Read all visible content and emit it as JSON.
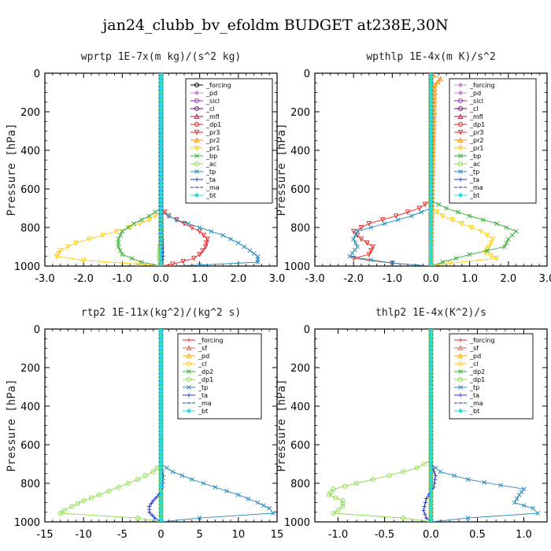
{
  "title": "jan24_clubb_bv_efoldm  BUDGET at238E,30N",
  "chart_data": [
    {
      "type": "line",
      "title": "wprtp  1E-7x(m kg)/(s^2 kg)",
      "ylabel": "Pressure [hPa]",
      "xlim": [
        -3,
        3
      ],
      "ylim": [
        1000,
        0
      ],
      "xticks": [
        -3,
        -2,
        -1,
        0,
        1,
        2,
        3
      ],
      "xticklabels": [
        "-3.0",
        "-2.0",
        "-1.0",
        "0.0",
        "1.0",
        "2.0",
        "3.0"
      ],
      "yticks": [
        0,
        200,
        400,
        600,
        800,
        1000
      ],
      "yticklabels": [
        "0",
        "200",
        "400",
        "600",
        "800",
        "1000"
      ],
      "legend_position": "top-right",
      "legend": [
        "_forcing",
        "_pd",
        "_sicl",
        "_cl",
        "_mfl",
        "_dp1",
        "_pr3",
        "_pr2",
        "_pr1",
        "_bp",
        "_ac",
        "_tp",
        "_ta",
        "_ma",
        "_bt"
      ],
      "series": [
        {
          "name": "_forcing",
          "color": "#000000",
          "marker": "circle",
          "x": [
            0,
            0,
            0,
            0,
            0,
            0
          ],
          "y": [
            0,
            200,
            400,
            600,
            800,
            1000
          ]
        },
        {
          "name": "_pd",
          "color": "#cc88cc",
          "marker": "diamond",
          "x": [
            0,
            0
          ],
          "y": [
            0,
            1000
          ]
        },
        {
          "name": "_sicl",
          "color": "#8833aa",
          "marker": "circle",
          "x": [
            0,
            0,
            0.02,
            0
          ],
          "y": [
            0,
            700,
            900,
            1000
          ]
        },
        {
          "name": "_cl",
          "color": "#661166",
          "marker": "circle",
          "x": [
            0,
            0
          ],
          "y": [
            0,
            1000
          ]
        },
        {
          "name": "_mfl",
          "color": "#aa1144",
          "marker": "triangle",
          "x": [
            0,
            0
          ],
          "y": [
            0,
            1000
          ]
        },
        {
          "name": "_dp1",
          "color": "#dd2222",
          "marker": "circle",
          "x": [
            0,
            0
          ],
          "y": [
            0,
            1000
          ]
        },
        {
          "name": "_pr3",
          "color": "#ee2222",
          "marker": "triangle-down",
          "x": [
            0,
            0,
            0.2,
            0.6,
            1.0,
            1.2,
            1.15,
            1.0,
            0.85,
            0.3,
            0
          ],
          "y": [
            0,
            700,
            740,
            780,
            820,
            860,
            900,
            940,
            960,
            990,
            1000
          ]
        },
        {
          "name": "_pr2",
          "color": "#ff8800",
          "marker": "triangle",
          "x": [
            0,
            0
          ],
          "y": [
            0,
            1000
          ]
        },
        {
          "name": "_pr1",
          "color": "#ffcc00",
          "marker": "triangle-down",
          "x": [
            0,
            0,
            -0.3,
            -0.8,
            -1.5,
            -2.2,
            -2.6,
            -2.7,
            -2.0,
            -0.6,
            0
          ],
          "y": [
            0,
            720,
            760,
            800,
            840,
            880,
            920,
            950,
            970,
            990,
            1000
          ]
        },
        {
          "name": "_bp",
          "color": "#33aa33",
          "marker": "x",
          "x": [
            0,
            0,
            -0.3,
            -0.7,
            -1.0,
            -1.1,
            -1.1,
            -1.0,
            -0.5,
            0
          ],
          "y": [
            0,
            700,
            740,
            780,
            820,
            860,
            900,
            940,
            980,
            1000
          ]
        },
        {
          "name": "_ac",
          "color": "#88dd44",
          "marker": "circle",
          "x": [
            0,
            0,
            -0.05,
            0
          ],
          "y": [
            0,
            850,
            950,
            1000
          ]
        },
        {
          "name": "_tp",
          "color": "#2288bb",
          "marker": "x",
          "x": [
            0,
            0,
            0.4,
            1.0,
            1.6,
            2.0,
            2.3,
            2.5,
            2.5,
            1.0,
            0
          ],
          "y": [
            0,
            720,
            760,
            800,
            840,
            880,
            920,
            950,
            980,
            995,
            1000
          ]
        },
        {
          "name": "_ta",
          "color": "#2233cc",
          "marker": "plus",
          "x": [
            0,
            0,
            0.05,
            0
          ],
          "y": [
            0,
            850,
            950,
            1000
          ]
        },
        {
          "name": "_ma",
          "color": "#224488",
          "marker": "dash",
          "x": [
            0,
            0
          ],
          "y": [
            0,
            1000
          ]
        },
        {
          "name": "_bt",
          "color": "#22dddd",
          "marker": "diamond",
          "x": [
            0,
            0
          ],
          "y": [
            0,
            1000
          ]
        }
      ]
    },
    {
      "type": "line",
      "title": "wpthlp  1E-4x(m K)/s^2",
      "ylabel": "Pressure [hPa]",
      "xlim": [
        -3,
        3
      ],
      "ylim": [
        1000,
        0
      ],
      "xticks": [
        -3,
        -2,
        -1,
        0,
        1,
        2,
        3
      ],
      "xticklabels": [
        "-3.0",
        "-2.0",
        "-1.0",
        "0.0",
        "1.0",
        "2.0",
        "3.0"
      ],
      "yticks": [
        0,
        200,
        400,
        600,
        800,
        1000
      ],
      "yticklabels": [
        "0",
        "200",
        "400",
        "600",
        "800",
        "1000"
      ],
      "legend_position": "top-right",
      "legend": [
        "_forcing",
        "_pd",
        "_sicl",
        "_cl",
        "_mfl",
        "_dp1",
        "_pr3",
        "_pr2",
        "_pr1",
        "_bp",
        "_ac",
        "_tp",
        "_ta",
        "_ma",
        "_bt"
      ],
      "series": [
        {
          "name": "_forcing",
          "color": "#cc88cc",
          "marker": "diamond",
          "x": [
            0,
            0
          ],
          "y": [
            0,
            1000
          ]
        },
        {
          "name": "_pd",
          "color": "#cc88cc",
          "marker": "diamond",
          "x": [
            0,
            0
          ],
          "y": [
            0,
            1000
          ]
        },
        {
          "name": "_sicl",
          "color": "#8833aa",
          "marker": "circle",
          "x": [
            0,
            0
          ],
          "y": [
            0,
            1000
          ]
        },
        {
          "name": "_cl",
          "color": "#661166",
          "marker": "circle",
          "x": [
            0,
            0
          ],
          "y": [
            0,
            1000
          ]
        },
        {
          "name": "_mfl",
          "color": "#aa1144",
          "marker": "triangle",
          "x": [
            0,
            0
          ],
          "y": [
            0,
            1000
          ]
        },
        {
          "name": "_dp1",
          "color": "#dd2222",
          "marker": "circle",
          "x": [
            0,
            0
          ],
          "y": [
            0,
            1000
          ]
        },
        {
          "name": "_pr3",
          "color": "#ee2222",
          "marker": "triangle-down",
          "x": [
            0,
            0,
            -0.3,
            -0.9,
            -1.6,
            -2.0,
            -1.8,
            -1.5,
            -1.6,
            -2.0,
            -1.0,
            0
          ],
          "y": [
            0,
            660,
            700,
            740,
            780,
            820,
            860,
            900,
            940,
            960,
            985,
            1000
          ]
        },
        {
          "name": "_pr2",
          "color": "#ff8800",
          "marker": "triangle",
          "x": [
            0,
            0.05,
            0.25,
            0.1,
            0
          ],
          "y": [
            0,
            10,
            30,
            60,
            1000
          ]
        },
        {
          "name": "_pr1",
          "color": "#ffcc00",
          "marker": "triangle-down",
          "x": [
            0,
            0,
            0.3,
            0.8,
            1.3,
            1.6,
            1.5,
            1.4,
            1.7,
            0.5,
            0
          ],
          "y": [
            0,
            700,
            740,
            780,
            820,
            860,
            900,
            930,
            960,
            985,
            1000
          ]
        },
        {
          "name": "_bp",
          "color": "#33aa33",
          "marker": "x",
          "x": [
            0,
            0,
            0.4,
            1.0,
            1.7,
            2.2,
            2.0,
            1.9,
            1.0,
            0.3,
            0
          ],
          "y": [
            0,
            660,
            700,
            740,
            780,
            820,
            860,
            900,
            940,
            980,
            1000
          ]
        },
        {
          "name": "_ac",
          "color": "#88dd44",
          "marker": "circle",
          "x": [
            0,
            0
          ],
          "y": [
            0,
            1000
          ]
        },
        {
          "name": "_tp",
          "color": "#2288bb",
          "marker": "x",
          "x": [
            0,
            0,
            -0.5,
            -1.2,
            -1.9,
            -2.0,
            -1.9,
            -2.1,
            -1.0,
            0
          ],
          "y": [
            0,
            700,
            740,
            780,
            820,
            860,
            900,
            950,
            985,
            1000
          ]
        },
        {
          "name": "_ta",
          "color": "#2233cc",
          "marker": "plus",
          "x": [
            0,
            0
          ],
          "y": [
            0,
            1000
          ]
        },
        {
          "name": "_ma",
          "color": "#224488",
          "marker": "dash",
          "x": [
            0,
            0
          ],
          "y": [
            0,
            1000
          ]
        },
        {
          "name": "_bt",
          "color": "#22dddd",
          "marker": "diamond",
          "x": [
            0,
            0
          ],
          "y": [
            0,
            1000
          ]
        }
      ]
    },
    {
      "type": "line",
      "title": "rtp2  1E-11x(kg^2)/(kg^2 s)",
      "ylabel": "Pressure [hPa]",
      "xlim": [
        -15,
        15
      ],
      "ylim": [
        1000,
        0
      ],
      "xticks": [
        -15,
        -10,
        -5,
        0,
        5,
        10,
        15
      ],
      "xticklabels": [
        "-15",
        "-10",
        "-5",
        "0",
        "5",
        "10",
        "15"
      ],
      "yticks": [
        0,
        200,
        400,
        600,
        800,
        1000
      ],
      "yticklabels": [
        "0",
        "200",
        "400",
        "600",
        "800",
        "1000"
      ],
      "legend_position": "top-right",
      "legend": [
        "_forcing",
        "_sf",
        "_pd",
        "_cl",
        "_dp2",
        "_dp1",
        "_tp",
        "_ta",
        "_ma",
        "_bt"
      ],
      "series": [
        {
          "name": "_forcing",
          "color": "#dd2222",
          "marker": "plus",
          "x": [
            0,
            0
          ],
          "y": [
            0,
            1000
          ]
        },
        {
          "name": "_sf",
          "color": "#cc6655",
          "marker": "triangle",
          "x": [
            0,
            0
          ],
          "y": [
            0,
            1000
          ]
        },
        {
          "name": "_pd",
          "color": "#ffaa00",
          "marker": "triangle",
          "x": [
            0,
            0
          ],
          "y": [
            0,
            1000
          ]
        },
        {
          "name": "_cl",
          "color": "#ffcc00",
          "marker": "circle",
          "x": [
            0,
            0
          ],
          "y": [
            0,
            1000
          ]
        },
        {
          "name": "_dp2",
          "color": "#33aa33",
          "marker": "x",
          "x": [
            0,
            0
          ],
          "y": [
            0,
            1000
          ]
        },
        {
          "name": "_dp1",
          "color": "#88dd44",
          "marker": "circle",
          "x": [
            0,
            0,
            -1.0,
            -3.0,
            -5.5,
            -8.0,
            -10.0,
            -11.5,
            -12.5,
            -13.0,
            -3.0,
            0
          ],
          "y": [
            0,
            700,
            740,
            780,
            820,
            860,
            890,
            920,
            940,
            955,
            980,
            1000
          ]
        },
        {
          "name": "_tp",
          "color": "#2288bb",
          "marker": "x",
          "x": [
            0,
            0,
            1.5,
            4.0,
            7.0,
            10.0,
            12.5,
            14.0,
            14.5,
            5.0,
            0
          ],
          "y": [
            0,
            700,
            740,
            780,
            820,
            860,
            900,
            930,
            955,
            980,
            1000
          ]
        },
        {
          "name": "_ta",
          "color": "#2233cc",
          "marker": "plus",
          "x": [
            0,
            0,
            0.3,
            0.2,
            -0.3,
            -1.0,
            -1.5,
            -1.5,
            -0.8,
            0
          ],
          "y": [
            0,
            700,
            760,
            820,
            860,
            890,
            920,
            950,
            980,
            1000
          ]
        },
        {
          "name": "_ma",
          "color": "#224488",
          "marker": "dash",
          "x": [
            0,
            0
          ],
          "y": [
            0,
            1000
          ]
        },
        {
          "name": "_bt",
          "color": "#22dddd",
          "marker": "diamond",
          "x": [
            0,
            0
          ],
          "y": [
            0,
            1000
          ]
        }
      ]
    },
    {
      "type": "line",
      "title": "thlp2  1E-4x(K^2)/s",
      "ylabel": "Pressure [hPa]",
      "xlim": [
        -1.25,
        1.25
      ],
      "ylim": [
        1000,
        0
      ],
      "xticks": [
        -1.0,
        -0.5,
        0.0,
        0.5,
        1.0
      ],
      "xticklabels": [
        "-1.0",
        "-0.5",
        "0.0",
        "0.5",
        "1.0"
      ],
      "yticks": [
        0,
        200,
        400,
        600,
        800,
        1000
      ],
      "yticklabels": [
        "0",
        "200",
        "400",
        "600",
        "800",
        "1000"
      ],
      "legend_position": "top-right",
      "legend": [
        "_forcing",
        "_sf",
        "_pd",
        "_cl",
        "_dp2",
        "_dp1",
        "_tp",
        "_ta",
        "_ma",
        "_bt"
      ],
      "series": [
        {
          "name": "_forcing",
          "color": "#dd2222",
          "marker": "plus",
          "x": [
            0,
            0
          ],
          "y": [
            0,
            1000
          ]
        },
        {
          "name": "_sf",
          "color": "#cc6655",
          "marker": "triangle",
          "x": [
            0,
            0
          ],
          "y": [
            0,
            1000
          ]
        },
        {
          "name": "_pd",
          "color": "#ffaa00",
          "marker": "triangle",
          "x": [
            0,
            0
          ],
          "y": [
            0,
            1000
          ]
        },
        {
          "name": "_cl",
          "color": "#ffcc00",
          "marker": "circle",
          "x": [
            0,
            0
          ],
          "y": [
            0,
            1000
          ]
        },
        {
          "name": "_dp2",
          "color": "#33aa33",
          "marker": "x",
          "x": [
            0,
            0
          ],
          "y": [
            0,
            1000
          ]
        },
        {
          "name": "_dp1",
          "color": "#88dd44",
          "marker": "circle",
          "x": [
            0,
            0,
            -0.15,
            -0.45,
            -0.8,
            -1.05,
            -1.1,
            -0.95,
            -0.95,
            -1.05,
            -0.3,
            0
          ],
          "y": [
            0,
            680,
            720,
            760,
            800,
            830,
            860,
            890,
            920,
            955,
            980,
            1000
          ]
        },
        {
          "name": "_tp",
          "color": "#2288bb",
          "marker": "x",
          "x": [
            0,
            0,
            0.1,
            0.4,
            0.75,
            1.0,
            0.95,
            0.9,
            1.1,
            1.15,
            0.4,
            0
          ],
          "y": [
            0,
            700,
            740,
            780,
            810,
            830,
            860,
            900,
            930,
            955,
            980,
            1000
          ]
        },
        {
          "name": "_ta",
          "color": "#2233cc",
          "marker": "plus",
          "x": [
            0,
            0,
            0.05,
            0.03,
            -0.05,
            -0.08,
            -0.05,
            0
          ],
          "y": [
            0,
            700,
            760,
            820,
            880,
            940,
            980,
            1000
          ]
        },
        {
          "name": "_ma",
          "color": "#224488",
          "marker": "dash",
          "x": [
            0,
            0
          ],
          "y": [
            0,
            1000
          ]
        },
        {
          "name": "_bt",
          "color": "#22dddd",
          "marker": "diamond",
          "x": [
            0,
            0
          ],
          "y": [
            0,
            1000
          ]
        }
      ]
    }
  ]
}
